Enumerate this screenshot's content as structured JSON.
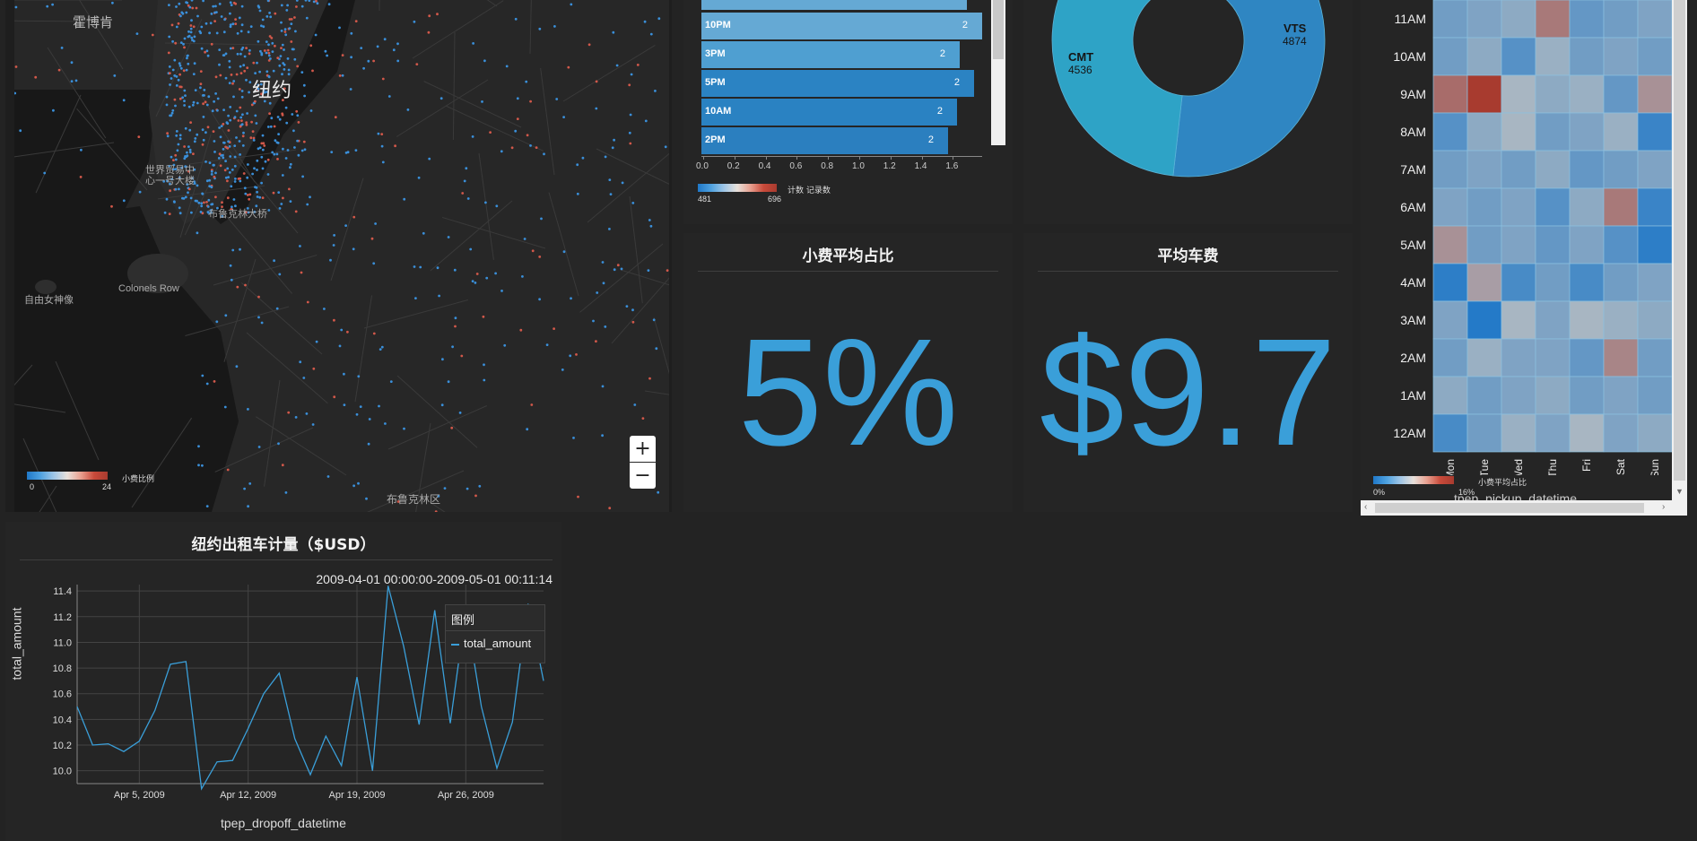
{
  "colors": {
    "background": "#232323",
    "panel": "#252525",
    "accent_blue": "#3a9fd9",
    "heat_low": "#1f78c8",
    "heat_high": "#a83b2f"
  },
  "map": {
    "labels": {
      "hoboken": "霍博肯",
      "new_york": "纽约",
      "wtc": "世界贸易中\n心一号大楼",
      "brooklyn_bridge": "布鲁克林大桥",
      "statue_liberty": "自由女神像",
      "colonels_row": "Colonels Row",
      "brooklyn": "布鲁克林区"
    },
    "legend": {
      "min": "0",
      "max": "24",
      "title": "小费比例"
    },
    "zoom_in": "+",
    "zoom_out": "−"
  },
  "hour_bars": {
    "items": [
      {
        "label": "10PM",
        "value": "2",
        "frac": 1.0
      },
      {
        "label": "3PM",
        "value": "2",
        "frac": 0.92
      },
      {
        "label": "5PM",
        "value": "2",
        "frac": 0.97
      },
      {
        "label": "10AM",
        "value": "2",
        "frac": 0.91
      },
      {
        "label": "2PM",
        "value": "2",
        "frac": 0.88
      }
    ],
    "axis_ticks": [
      "0.0",
      "0.2",
      "0.4",
      "0.6",
      "0.8",
      "1.0",
      "1.2",
      "1.4",
      "1.6"
    ],
    "legend": {
      "min": "481",
      "max": "696",
      "title": "计数 记录数"
    }
  },
  "vendor_donut": {
    "slices": [
      {
        "name": "VTS",
        "value": 4874,
        "value_text": "4874",
        "color": "#2f86c2"
      },
      {
        "name": "CMT",
        "value": 4536,
        "value_text": "4536",
        "color": "#2ea3c6"
      }
    ]
  },
  "tip_pct": {
    "title": "小费平均占比",
    "value": "5%"
  },
  "avg_fare": {
    "title": "平均车费",
    "value": "$9.7"
  },
  "heatmap": {
    "rows": [
      "11AM",
      "10AM",
      "9AM",
      "8AM",
      "7AM",
      "6AM",
      "5AM",
      "4AM",
      "3AM",
      "2AM",
      "1AM",
      "12AM"
    ],
    "days": [
      "Mon",
      "Tue",
      "Wed",
      "Thu",
      "Fri",
      "Sat",
      "Sun"
    ],
    "values": [
      [
        0.3,
        0.35,
        0.4,
        0.75,
        0.25,
        0.3,
        0.35
      ],
      [
        0.3,
        0.4,
        0.2,
        0.45,
        0.3,
        0.35,
        0.3
      ],
      [
        0.8,
        1.0,
        0.5,
        0.4,
        0.45,
        0.25,
        0.65
      ],
      [
        0.2,
        0.4,
        0.5,
        0.3,
        0.35,
        0.45,
        0.1
      ],
      [
        0.3,
        0.35,
        0.3,
        0.4,
        0.25,
        0.3,
        0.35
      ],
      [
        0.35,
        0.3,
        0.35,
        0.2,
        0.4,
        0.75,
        0.1
      ],
      [
        0.65,
        0.3,
        0.35,
        0.25,
        0.35,
        0.2,
        0.05
      ],
      [
        0.05,
        0.6,
        0.15,
        0.3,
        0.15,
        0.3,
        0.35
      ],
      [
        0.35,
        0.02,
        0.5,
        0.35,
        0.5,
        0.45,
        0.4
      ],
      [
        0.3,
        0.45,
        0.35,
        0.35,
        0.25,
        0.7,
        0.3
      ],
      [
        0.4,
        0.3,
        0.35,
        0.4,
        0.3,
        0.35,
        0.3
      ],
      [
        0.15,
        0.3,
        0.45,
        0.35,
        0.5,
        0.35,
        0.4
      ]
    ],
    "legend": {
      "min": "0%",
      "max": "16%",
      "title": "小费平均占比"
    },
    "xaxis_title": "tpep_pickup_datetime"
  },
  "line_panel": {
    "title": "纽约出租车计量（$USD）",
    "range_text": "2009-04-01 00:00:00-2009-05-01 00:11:14",
    "legend_title": "图例"
  },
  "chart_data": {
    "type": "line",
    "xlabel": "tpep_dropoff_datetime",
    "ylabel": "total_amount",
    "ylim": [
      9.9,
      11.45
    ],
    "y_ticks": [
      "10.0",
      "10.2",
      "10.4",
      "10.6",
      "10.8",
      "11.0",
      "11.2",
      "11.4"
    ],
    "x_ticks": [
      {
        "day": 5,
        "label": "Apr 5, 2009"
      },
      {
        "day": 12,
        "label": "Apr 12, 2009"
      },
      {
        "day": 19,
        "label": "Apr 19, 2009"
      },
      {
        "day": 26,
        "label": "Apr 26, 2009"
      }
    ],
    "grid": true,
    "legend_position": "top-right",
    "series": [
      {
        "name": "total_amount",
        "color": "#3a9fd9",
        "x": [
          1,
          2,
          3,
          4,
          5,
          6,
          7,
          8,
          9,
          10,
          11,
          12,
          13,
          14,
          15,
          16,
          17,
          18,
          19,
          20,
          21,
          22,
          23,
          24,
          25,
          26,
          27,
          28,
          29,
          30,
          31
        ],
        "y": [
          10.5,
          10.2,
          10.21,
          10.15,
          10.23,
          10.47,
          10.83,
          10.85,
          9.86,
          10.07,
          10.08,
          10.33,
          10.6,
          10.76,
          10.25,
          9.97,
          10.27,
          10.04,
          10.73,
          10.0,
          11.44,
          10.97,
          10.36,
          11.25,
          10.37,
          11.25,
          10.5,
          10.02,
          10.38,
          11.3,
          10.7
        ]
      }
    ]
  }
}
